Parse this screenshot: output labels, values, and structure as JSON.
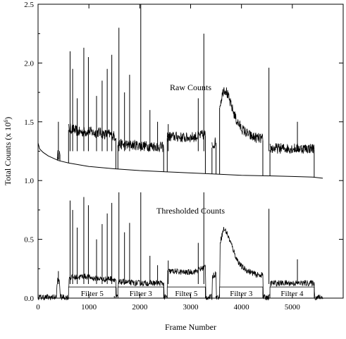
{
  "chart_data": {
    "type": "line",
    "xlabel": "Frame Number",
    "ylabel": "Total Counts (x 10",
    "ylabel_exponent": "6",
    "ylabel_close": ")",
    "xlim": [
      0,
      6000
    ],
    "ylim": [
      0,
      2.5
    ],
    "x_ticks": [
      0,
      1000,
      2000,
      3000,
      4000,
      5000
    ],
    "x_tick_labels": [
      "0",
      "1000",
      "2000",
      "3000",
      "4000",
      "5000"
    ],
    "y_ticks": [
      0,
      0.5,
      1.0,
      1.5,
      2.0,
      2.5
    ],
    "y_tick_labels": [
      "0.0",
      "0.5",
      "1.0",
      "1.5",
      "2.0",
      "2.5"
    ],
    "grid": false,
    "annotations": [
      {
        "text": "Raw Counts",
        "x": 3000,
        "y": 1.77
      },
      {
        "text": "Thresholded Counts",
        "x": 3000,
        "y": 0.72
      }
    ],
    "filter_labels": [
      {
        "text": "Filter 5",
        "x_start": 600,
        "x_end": 1530
      },
      {
        "text": "Filter 3",
        "x_start": 1570,
        "x_end": 2470
      },
      {
        "text": "Filter 5",
        "x_start": 2540,
        "x_end": 3290
      },
      {
        "text": "Filter 3",
        "x_start": 3570,
        "x_end": 4420
      },
      {
        "text": "Filter 4",
        "x_start": 4560,
        "x_end": 5430
      }
    ],
    "series": [
      {
        "kind": "baseline",
        "x": [
          0,
          30,
          100,
          200,
          400,
          600,
          1000,
          1500,
          2000,
          2500,
          3000,
          3500,
          4000,
          4500,
          5000,
          5400,
          5600
        ],
        "y": [
          1.32,
          1.27,
          1.24,
          1.21,
          1.17,
          1.15,
          1.12,
          1.1,
          1.085,
          1.075,
          1.065,
          1.055,
          1.045,
          1.04,
          1.035,
          1.03,
          1.02
        ]
      },
      {
        "kind": "raw-segments",
        "segments": [
          {
            "x": [
              380,
              430
            ],
            "y": [
              1.2,
              1.22
            ]
          },
          {
            "x": [
              600,
              700,
              800,
              900,
              1000,
              1100,
              1200,
              1300,
              1400,
              1530
            ],
            "y": [
              1.43,
              1.42,
              1.4,
              1.4,
              1.41,
              1.39,
              1.4,
              1.38,
              1.38,
              1.36
            ]
          },
          {
            "x": [
              1570,
              1700,
              1900,
              2100,
              2300,
              2470
            ],
            "y": [
              1.3,
              1.29,
              1.29,
              1.28,
              1.28,
              1.27
            ]
          },
          {
            "x": [
              2540,
              2700,
              2900,
              3100,
              3290
            ],
            "y": [
              1.36,
              1.36,
              1.35,
              1.36,
              1.38
            ]
          },
          {
            "x": [
              3420,
              3500
            ],
            "y": [
              1.28,
              1.32
            ]
          },
          {
            "x": [
              3570,
              3650,
              3700,
              3800,
              3900,
              4000,
              4100,
              4200,
              4300,
              4420
            ],
            "y": [
              1.62,
              1.77,
              1.75,
              1.62,
              1.5,
              1.43,
              1.39,
              1.36,
              1.35,
              1.34
            ]
          },
          {
            "x": [
              4560,
              4800,
              5000,
              5200,
              5430
            ],
            "y": [
              1.26,
              1.26,
              1.26,
              1.26,
              1.26
            ]
          }
        ],
        "spikes": [
          {
            "x": 400,
            "y": 1.5
          },
          {
            "x": 630,
            "y": 2.1
          },
          {
            "x": 680,
            "y": 1.95
          },
          {
            "x": 770,
            "y": 1.7
          },
          {
            "x": 900,
            "y": 2.13
          },
          {
            "x": 990,
            "y": 2.05
          },
          {
            "x": 1150,
            "y": 1.72
          },
          {
            "x": 1260,
            "y": 1.85
          },
          {
            "x": 1360,
            "y": 1.95
          },
          {
            "x": 1450,
            "y": 2.07
          },
          {
            "x": 1590,
            "y": 2.3
          },
          {
            "x": 1700,
            "y": 1.75
          },
          {
            "x": 1800,
            "y": 1.9
          },
          {
            "x": 2020,
            "y": 2.5
          },
          {
            "x": 2200,
            "y": 1.6
          },
          {
            "x": 2350,
            "y": 1.5
          },
          {
            "x": 2560,
            "y": 1.48
          },
          {
            "x": 3150,
            "y": 1.7
          },
          {
            "x": 3260,
            "y": 2.25
          },
          {
            "x": 4540,
            "y": 1.96
          },
          {
            "x": 5100,
            "y": 1.5
          }
        ]
      },
      {
        "kind": "thresholded",
        "x": [
          0,
          360,
          380,
          420,
          440,
          600,
          610,
          700,
          800,
          900,
          1000,
          1100,
          1200,
          1300,
          1400,
          1530,
          1540,
          1570,
          1580,
          1700,
          1900,
          2100,
          2300,
          2470,
          2480,
          2540,
          2550,
          2700,
          2900,
          3100,
          3290,
          3300,
          3420,
          3430,
          3500,
          3510,
          3570,
          3580,
          3650,
          3700,
          3800,
          3900,
          4000,
          4100,
          4200,
          4300,
          4420,
          4430,
          4560,
          4570,
          4800,
          5000,
          5200,
          5430,
          5440,
          5600
        ],
        "y": [
          0,
          0,
          0.14,
          0.14,
          0,
          0,
          0.17,
          0.17,
          0.17,
          0.18,
          0.17,
          0.16,
          0.16,
          0.15,
          0.16,
          0.15,
          0,
          0,
          0.13,
          0.13,
          0.12,
          0.12,
          0.12,
          0.12,
          0,
          0,
          0.22,
          0.22,
          0.21,
          0.22,
          0.26,
          0,
          0,
          0.18,
          0.2,
          0,
          0,
          0.47,
          0.58,
          0.56,
          0.45,
          0.33,
          0.26,
          0.23,
          0.21,
          0.19,
          0.19,
          0,
          0,
          0.12,
          0.12,
          0.12,
          0.12,
          0.12,
          0,
          0
        ],
        "spikes": [
          {
            "x": 400,
            "y": 0.23
          },
          {
            "x": 630,
            "y": 0.83
          },
          {
            "x": 680,
            "y": 0.75
          },
          {
            "x": 770,
            "y": 0.6
          },
          {
            "x": 900,
            "y": 0.86
          },
          {
            "x": 990,
            "y": 0.79
          },
          {
            "x": 1150,
            "y": 0.5
          },
          {
            "x": 1260,
            "y": 0.63
          },
          {
            "x": 1360,
            "y": 0.72
          },
          {
            "x": 1450,
            "y": 0.81
          },
          {
            "x": 1590,
            "y": 0.9
          },
          {
            "x": 1700,
            "y": 0.56
          },
          {
            "x": 1800,
            "y": 0.64
          },
          {
            "x": 2020,
            "y": 0.9
          },
          {
            "x": 2200,
            "y": 0.36
          },
          {
            "x": 2350,
            "y": 0.28
          },
          {
            "x": 2560,
            "y": 0.32
          },
          {
            "x": 3150,
            "y": 0.47
          },
          {
            "x": 3260,
            "y": 0.9
          },
          {
            "x": 4540,
            "y": 0.76
          },
          {
            "x": 5100,
            "y": 0.33
          }
        ]
      }
    ]
  }
}
